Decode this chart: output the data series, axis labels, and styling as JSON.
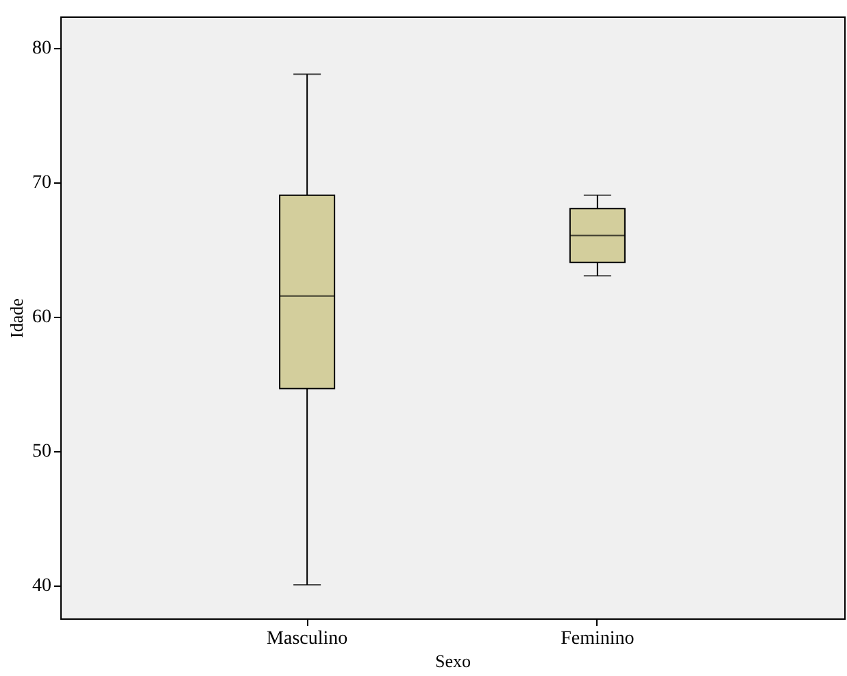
{
  "chart_data": {
    "type": "box",
    "xlabel": "Sexo",
    "ylabel": "Idade",
    "categories": [
      "Masculino",
      "Feminino"
    ],
    "color": "#d3ce9c",
    "boxes": [
      {
        "low": 40,
        "q1": 54.6,
        "median": 61.5,
        "q3": 69,
        "high": 78
      },
      {
        "low": 63,
        "q1": 64,
        "median": 66,
        "q3": 68,
        "high": 69
      }
    ],
    "ylim": [
      37.5,
      82.3
    ],
    "yticks": [
      40,
      50,
      60,
      70,
      80
    ]
  }
}
